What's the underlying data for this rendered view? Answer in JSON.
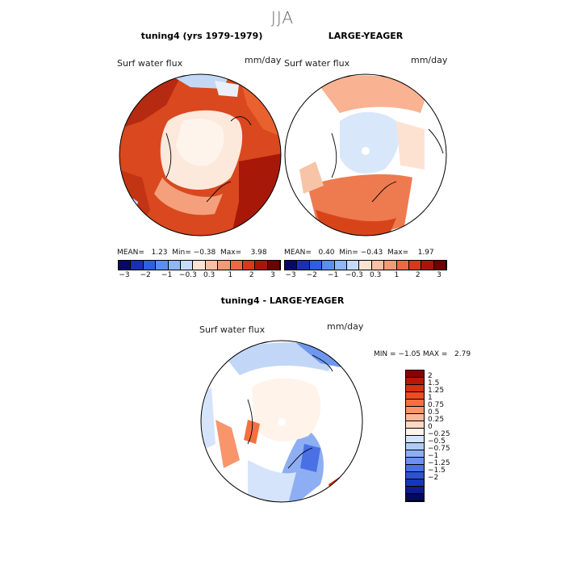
{
  "season": "JJA",
  "panels": [
    {
      "title": "tuning4 (yrs 1979-1979)",
      "variable": "Surf water flux",
      "units": "mm/day",
      "stats": {
        "mean_label": "MEAN=",
        "mean": "1.23",
        "min_label": "Min=",
        "min": "−0.38",
        "max_label": "Max=",
        "max": "3.98"
      }
    },
    {
      "title": "LARGE-YEAGER",
      "variable": "Surf water flux",
      "units": "mm/day",
      "stats": {
        "mean_label": "MEAN=",
        "mean": "0.40",
        "min_label": "Min=",
        "min": "−0.43",
        "max_label": "Max=",
        "max": "1.97"
      }
    },
    {
      "title": "tuning4 - LARGE-YEAGER",
      "variable": "Surf water flux",
      "units": "mm/day",
      "stats": {
        "min_label": "MIN =",
        "min": "−1.05",
        "max_label": "MAX =",
        "max": "2.79"
      }
    }
  ],
  "colorbar_top": {
    "colors": [
      "#08086b",
      "#1a2fb5",
      "#2f5fe0",
      "#5a8ef0",
      "#8fb6f7",
      "#c6dbfb",
      "#fbe3d3",
      "#f8c1a4",
      "#f39a76",
      "#ea6a46",
      "#d63a1c",
      "#a71608",
      "#6e0000"
    ],
    "tick_labels": [
      "−3",
      "−2",
      "−1",
      "−0.3",
      "0.3",
      "1",
      "2",
      "3"
    ]
  },
  "colorbar_diff": {
    "colors": [
      "#8b0000",
      "#b81708",
      "#d93013",
      "#ec4b24",
      "#f5703f",
      "#f9956b",
      "#fbb897",
      "#fdd9c4",
      "#fff3ea",
      "#d6e4fb",
      "#b1cbf7",
      "#8daef2",
      "#6b90ee",
      "#4a70e6",
      "#2d52d6",
      "#1a36b8",
      "#0b1d8f",
      "#020a5c"
    ],
    "tick_labels": [
      "2",
      "1.5",
      "1.25",
      "1",
      "0.75",
      "0.5",
      "0.25",
      "0",
      "−0.25",
      "−0.5",
      "−0.75",
      "−1",
      "−1.25",
      "−1.5",
      "−2"
    ]
  }
}
